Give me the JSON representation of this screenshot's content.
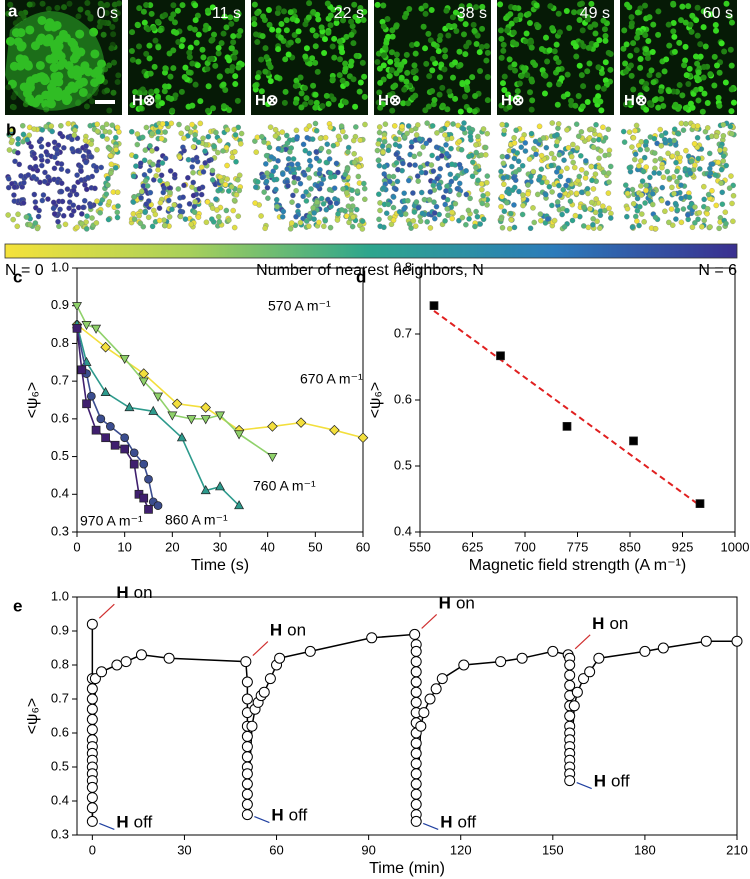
{
  "panel_a": {
    "label": "a",
    "times": [
      "0 s",
      "11 s",
      "22 s",
      "38 s",
      "49 s",
      "60 s"
    ],
    "field": "H⊗"
  },
  "panel_b": {
    "label": "b"
  },
  "colorbar": {
    "min_label": "N = 0",
    "title": "Number of nearest neighbors, N",
    "max_label": "N = 6",
    "colors": [
      "#f5e23a",
      "#a8d05a",
      "#2ca58d",
      "#2b7bba",
      "#3a2f8f"
    ]
  },
  "chart_data": [
    {
      "type": "line",
      "label": "c",
      "xlabel": "Time (s)",
      "ylabel": "<ψ₆>",
      "xlim": [
        0,
        60
      ],
      "xticks": [
        0,
        10,
        20,
        30,
        40,
        50,
        60
      ],
      "ylim": [
        0.3,
        1.0
      ],
      "yticks": [
        0.3,
        0.4,
        0.5,
        0.6,
        0.7,
        0.8,
        0.9,
        {
          "value": 1,
          "label": "1.0"
        }
      ],
      "series": [
        {
          "name": "570 A m⁻¹",
          "color": "#f3df3c",
          "marker": "diamond",
          "x": [
            0,
            6,
            14,
            21,
            27,
            34,
            41,
            47,
            54,
            60
          ],
          "values": [
            0.85,
            0.79,
            0.72,
            0.64,
            0.63,
            0.57,
            0.58,
            0.59,
            0.57,
            0.55
          ]
        },
        {
          "name": "670 A m⁻¹",
          "color": "#8fd16a",
          "marker": "triangle-down",
          "x": [
            0,
            2,
            4,
            10,
            14,
            17,
            20,
            24,
            27,
            30,
            34,
            41
          ],
          "values": [
            0.9,
            0.85,
            0.84,
            0.76,
            0.7,
            0.66,
            0.61,
            0.6,
            0.6,
            0.61,
            0.56,
            0.5
          ]
        },
        {
          "name": "760 A m⁻¹",
          "color": "#2d9a8c",
          "marker": "triangle-up",
          "x": [
            0,
            2,
            6,
            11,
            16,
            22,
            27,
            30,
            34
          ],
          "values": [
            0.85,
            0.75,
            0.67,
            0.63,
            0.62,
            0.55,
            0.41,
            0.42,
            0.37
          ]
        },
        {
          "name": "860 A m⁻¹",
          "color": "#3b4d8f",
          "marker": "circle",
          "x": [
            0,
            2,
            3,
            5,
            7,
            10,
            12,
            14,
            15,
            16,
            17
          ],
          "values": [
            0.84,
            0.72,
            0.66,
            0.6,
            0.58,
            0.55,
            0.51,
            0.48,
            0.44,
            0.38,
            0.37
          ]
        },
        {
          "name": "970 A m⁻¹",
          "color": "#3f1f6e",
          "marker": "square",
          "x": [
            0,
            1,
            2,
            4,
            6,
            8,
            10,
            12,
            13,
            14,
            15
          ],
          "values": [
            0.84,
            0.73,
            0.64,
            0.57,
            0.55,
            0.53,
            0.52,
            0.48,
            0.4,
            0.39,
            0.36
          ]
        }
      ]
    },
    {
      "type": "scatter",
      "label": "d",
      "xlabel": "Magnetic field strength (A m⁻¹)",
      "ylabel": "<ψ₆>",
      "xlim": [
        550,
        1000
      ],
      "xticks": [
        550,
        625,
        700,
        775,
        850,
        925,
        1000
      ],
      "ylim": [
        0.4,
        0.8
      ],
      "yticks": [
        0.4,
        0.5,
        0.6,
        0.7,
        0.8
      ],
      "color": "#000000",
      "x": [
        570,
        665,
        760,
        855,
        950
      ],
      "values": [
        0.743,
        0.667,
        0.56,
        0.538,
        0.443
      ],
      "fit": {
        "color": "#e02020",
        "x": [
          570,
          950
        ],
        "values": [
          0.735,
          0.44
        ]
      }
    },
    {
      "type": "line",
      "label": "e",
      "xlabel": "Time (min)",
      "ylabel": "<ψ₆>",
      "xlim": [
        -5,
        210
      ],
      "xticks": [
        0,
        30,
        60,
        90,
        120,
        150,
        180,
        210
      ],
      "ylim": [
        0.3,
        1.0
      ],
      "yticks": [
        0.3,
        0.4,
        0.5,
        0.6,
        0.7,
        0.8,
        0.9,
        {
          "value": 1,
          "label": "1.0"
        }
      ],
      "color": "#000000",
      "x": [
        0,
        0,
        0,
        0,
        0,
        0,
        0,
        0,
        0,
        0,
        0,
        0,
        0,
        0,
        0,
        0,
        0,
        0,
        1,
        3,
        8,
        11,
        16,
        25,
        50,
        50.5,
        50.5,
        50.5,
        50.5,
        50.5,
        50.5,
        50.5,
        50.5,
        50.5,
        50.5,
        50.5,
        50.5,
        50.5,
        52,
        53,
        54,
        55,
        56,
        58,
        60,
        61,
        71,
        91,
        105,
        105.5,
        105.5,
        105.5,
        105.5,
        105.5,
        105.5,
        105.5,
        105.5,
        105.5,
        105.5,
        105.5,
        105.5,
        105.5,
        105.5,
        105.5,
        105.5,
        105.5,
        105.5,
        105.5,
        107,
        108,
        110,
        112,
        114,
        121,
        133,
        140,
        150,
        155,
        155.5,
        155.5,
        155.5,
        155.5,
        155.5,
        155.5,
        155.5,
        155.5,
        155.5,
        155.5,
        155.5,
        155.5,
        155.5,
        155.5,
        155.5,
        155.5,
        157,
        158,
        160,
        162,
        165,
        180,
        186,
        200,
        210
      ],
      "values": [
        0.92,
        0.76,
        0.73,
        0.7,
        0.67,
        0.64,
        0.61,
        0.58,
        0.56,
        0.54,
        0.52,
        0.5,
        0.48,
        0.46,
        0.44,
        0.41,
        0.38,
        0.34,
        0.76,
        0.78,
        0.8,
        0.81,
        0.83,
        0.82,
        0.81,
        0.75,
        0.7,
        0.66,
        0.62,
        0.59,
        0.56,
        0.53,
        0.5,
        0.48,
        0.45,
        0.42,
        0.39,
        0.36,
        0.62,
        0.67,
        0.69,
        0.71,
        0.72,
        0.76,
        0.8,
        0.82,
        0.84,
        0.88,
        0.89,
        0.86,
        0.84,
        0.81,
        0.78,
        0.75,
        0.72,
        0.69,
        0.66,
        0.63,
        0.6,
        0.57,
        0.54,
        0.51,
        0.48,
        0.45,
        0.42,
        0.39,
        0.36,
        0.34,
        0.62,
        0.66,
        0.7,
        0.73,
        0.76,
        0.8,
        0.81,
        0.82,
        0.84,
        0.83,
        0.82,
        0.8,
        0.77,
        0.74,
        0.71,
        0.68,
        0.65,
        0.62,
        0.6,
        0.58,
        0.56,
        0.54,
        0.52,
        0.5,
        0.48,
        0.46,
        0.68,
        0.72,
        0.76,
        0.78,
        0.82,
        0.84,
        0.85,
        0.87,
        0.87
      ],
      "annotation_symbol": "H",
      "annotations": [
        {
          "text": "on",
          "x": 0,
          "y": 0.92,
          "color": "#d03030"
        },
        {
          "text": "off",
          "x": 0,
          "y": 0.34,
          "color": "#2040a0"
        },
        {
          "text": "on",
          "x": 50,
          "y": 0.81,
          "color": "#d03030"
        },
        {
          "text": "off",
          "x": 50.5,
          "y": 0.36,
          "color": "#2040a0"
        },
        {
          "text": "on",
          "x": 105,
          "y": 0.89,
          "color": "#d03030"
        },
        {
          "text": "off",
          "x": 105.5,
          "y": 0.34,
          "color": "#2040a0"
        },
        {
          "text": "on",
          "x": 155,
          "y": 0.83,
          "color": "#d03030"
        },
        {
          "text": "off",
          "x": 155.5,
          "y": 0.46,
          "color": "#2040a0"
        }
      ]
    }
  ]
}
